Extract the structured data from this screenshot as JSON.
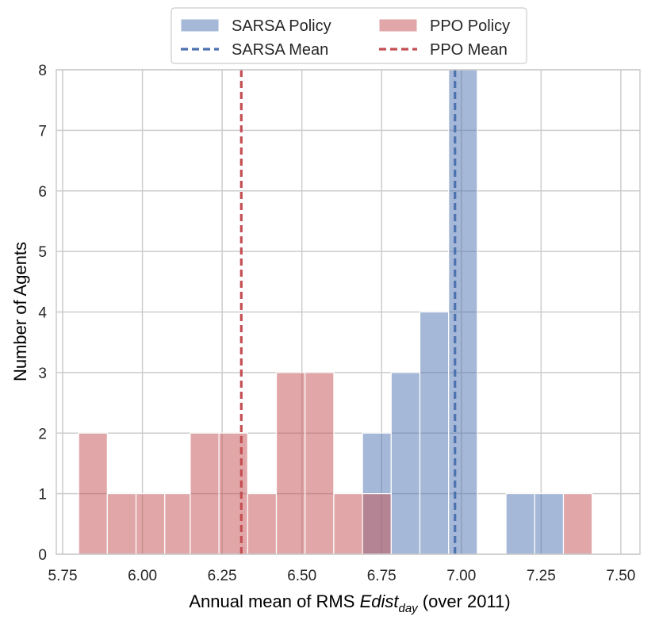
{
  "chart_data": {
    "type": "bar",
    "subtype": "histogram",
    "title": "",
    "xlabel_prefix": "Annual mean of RMS ",
    "xlabel_var": "Edist",
    "xlabel_sub": "day",
    "xlabel_suffix": " (over 2011)",
    "ylabel": "Number of Agents",
    "xlim": [
      5.73,
      7.56
    ],
    "ylim": [
      0,
      8
    ],
    "x_ticks": [
      5.75,
      6.0,
      6.25,
      6.5,
      6.75,
      7.0,
      7.25,
      7.5
    ],
    "x_tick_labels": [
      "5.75",
      "6.00",
      "6.25",
      "6.50",
      "6.75",
      "7.00",
      "7.25",
      "7.50"
    ],
    "y_ticks": [
      0,
      1,
      2,
      3,
      4,
      5,
      6,
      7,
      8
    ],
    "y_tick_labels": [
      "0",
      "1",
      "2",
      "3",
      "4",
      "5",
      "6",
      "7",
      "8"
    ],
    "bin_edges": [
      5.8,
      5.89,
      5.98,
      6.07,
      6.15,
      6.24,
      6.33,
      6.42,
      6.51,
      6.6,
      6.69,
      6.78,
      6.87,
      6.96,
      7.05,
      7.14,
      7.23,
      7.32,
      7.41,
      7.5
    ],
    "series": [
      {
        "name": "SARSA Policy",
        "color": "#4c72b0",
        "counts": [
          0,
          0,
          0,
          0,
          0,
          0,
          0,
          0,
          0,
          0,
          2,
          3,
          4,
          8,
          0,
          1,
          1,
          0,
          0
        ],
        "mean": 6.98
      },
      {
        "name": "PPO Policy",
        "color": "#c44e52",
        "counts": [
          2,
          1,
          1,
          1,
          2,
          2,
          1,
          3,
          3,
          1,
          1,
          0,
          0,
          0,
          0,
          0,
          0,
          1,
          0
        ],
        "mean": 6.31
      }
    ],
    "legend": {
      "position": "top-center",
      "items": [
        {
          "label": "SARSA Policy",
          "kind": "patch",
          "color": "#4c72b0"
        },
        {
          "label": "PPO Policy",
          "kind": "patch",
          "color": "#c44e52"
        },
        {
          "label": "SARSA Mean",
          "kind": "dashed-line",
          "color": "#4c72b0"
        },
        {
          "label": "PPO Mean",
          "kind": "dashed-line",
          "color": "#c44e52"
        }
      ]
    },
    "grid": true
  }
}
